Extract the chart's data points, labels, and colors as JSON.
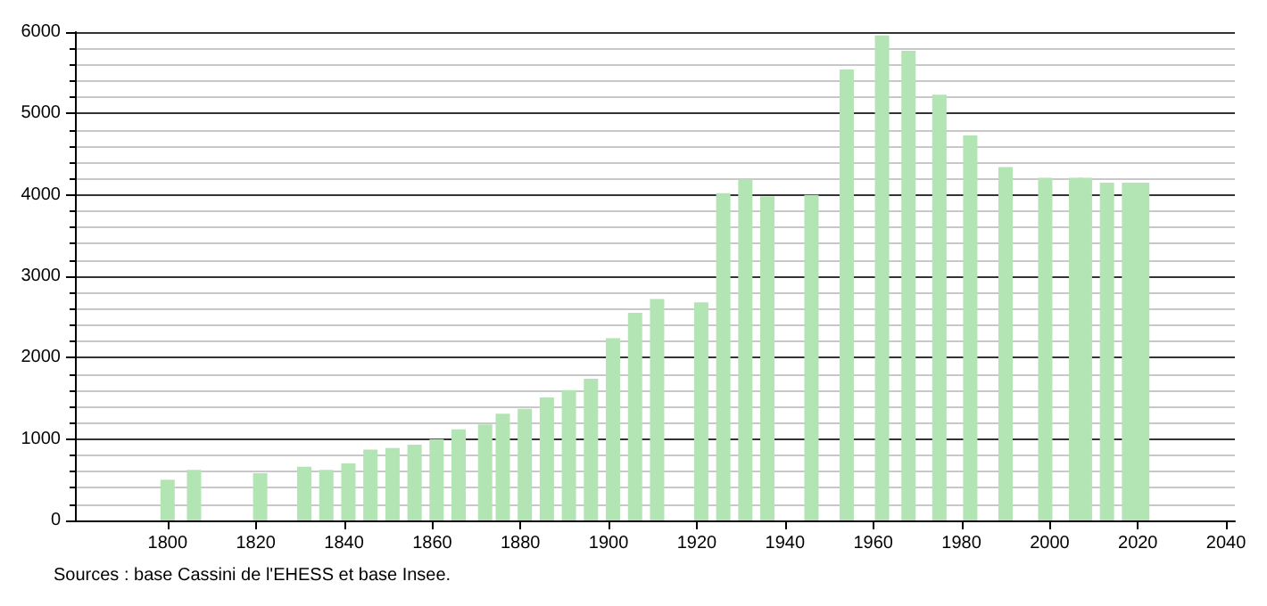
{
  "chart_data": {
    "type": "bar",
    "x": [
      1800,
      1806,
      1821,
      1831,
      1836,
      1841,
      1846,
      1851,
      1856,
      1861,
      1866,
      1872,
      1876,
      1881,
      1886,
      1891,
      1896,
      1901,
      1906,
      1911,
      1921,
      1926,
      1931,
      1936,
      1946,
      1954,
      1962,
      1968,
      1975,
      1982,
      1990,
      1999,
      2006,
      2008,
      2013,
      2018,
      2021
    ],
    "values": [
      500,
      620,
      580,
      660,
      620,
      700,
      870,
      890,
      930,
      1000,
      1120,
      1180,
      1310,
      1370,
      1510,
      1600,
      1740,
      2240,
      2550,
      2720,
      2680,
      4020,
      4190,
      3980,
      4000,
      5540,
      5960,
      5770,
      5230,
      4730,
      4340,
      4210,
      4210,
      4210,
      4150,
      4150,
      4150
    ],
    "color": "#b2e4b4",
    "xlim": [
      1779,
      2042
    ],
    "xticks": [
      1800,
      1820,
      1840,
      1860,
      1880,
      1900,
      1920,
      1940,
      1960,
      1980,
      2000,
      2020,
      2040
    ],
    "ylim": [
      0,
      6000
    ],
    "yticks": [
      0,
      1000,
      2000,
      3000,
      4000,
      5000,
      6000
    ],
    "grid": "y",
    "annotations": [
      "Sources : base Cassini de l'EHESS et base Insee."
    ]
  }
}
